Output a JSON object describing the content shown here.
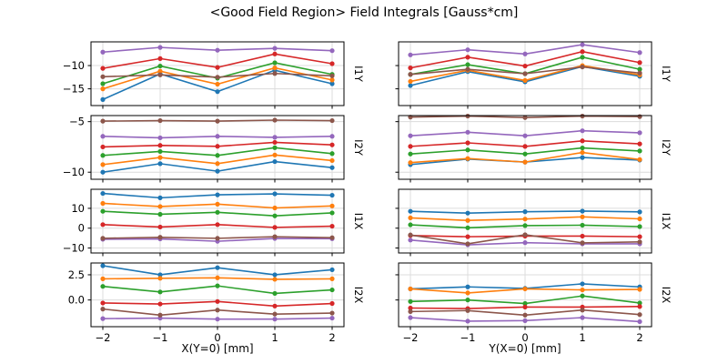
{
  "chart_data": {
    "type": "line",
    "title": "<Good Field Region> Field Integrals [Gauss*cm]",
    "grid": true,
    "legend_position": "none",
    "marker": "circle",
    "x": [
      -2,
      -1,
      0,
      1,
      2
    ],
    "xtick_labels": [
      "−2",
      "−1",
      "0",
      "1",
      "2"
    ],
    "columns": [
      {
        "xlabel": "X(Y=0) [mm]"
      },
      {
        "xlabel": "Y(X=0) [mm]"
      }
    ],
    "series_palette": [
      {
        "name": "blue",
        "color": "#1f77b4"
      },
      {
        "name": "orange",
        "color": "#ff7f0e"
      },
      {
        "name": "green",
        "color": "#2ca02c"
      },
      {
        "name": "red",
        "color": "#d62728"
      },
      {
        "name": "purple",
        "color": "#9467bd"
      },
      {
        "name": "brown",
        "color": "#8c564b"
      }
    ],
    "colors": {
      "grid": "#dcdcdc",
      "spine": "#000000",
      "text": "#000000",
      "background": "#ffffff"
    },
    "rows": [
      {
        "label": "I1Y",
        "ylim": [
          -18.6,
          -4.9
        ],
        "yticks": [
          -10,
          -15
        ],
        "ytick_labels": [
          "−10",
          "−15"
        ],
        "panels": [
          {
            "series": [
              {
                "name": "blue",
                "values": [
                  -17.3,
                  -11.8,
                  -15.6,
                  -11.0,
                  -13.9
                ]
              },
              {
                "name": "orange",
                "values": [
                  -15.0,
                  -11.2,
                  -14.0,
                  -10.5,
                  -13.1
                ]
              },
              {
                "name": "green",
                "values": [
                  -13.9,
                  -10.1,
                  -12.7,
                  -9.4,
                  -11.9
                ]
              },
              {
                "name": "red",
                "values": [
                  -10.6,
                  -8.5,
                  -10.4,
                  -7.5,
                  -9.6
                ]
              },
              {
                "name": "purple",
                "values": [
                  -7.1,
                  -6.1,
                  -6.7,
                  -6.3,
                  -6.8
                ]
              },
              {
                "name": "brown",
                "values": [
                  -12.4,
                  -12.0,
                  -12.5,
                  -11.7,
                  -12.2
                ]
              }
            ]
          },
          {
            "series": [
              {
                "name": "blue",
                "values": [
                  -14.3,
                  -11.3,
                  -13.5,
                  -10.2,
                  -12.3
                ]
              },
              {
                "name": "orange",
                "values": [
                  -13.4,
                  -11.0,
                  -13.2,
                  -10.0,
                  -12.0
                ]
              },
              {
                "name": "green",
                "values": [
                  -11.9,
                  -9.8,
                  -11.75,
                  -8.2,
                  -10.8
                ]
              },
              {
                "name": "red",
                "values": [
                  -10.5,
                  -8.2,
                  -10.1,
                  -7.0,
                  -9.35
                ]
              },
              {
                "name": "purple",
                "values": [
                  -7.7,
                  -6.6,
                  -7.5,
                  -5.5,
                  -7.2
                ]
              },
              {
                "name": "brown",
                "values": [
                  -11.9,
                  -10.8,
                  -11.75,
                  -10.3,
                  -11.6
                ]
              }
            ]
          }
        ]
      },
      {
        "label": "I2Y",
        "ylim": [
          -10.7,
          -4.4
        ],
        "yticks": [
          -5,
          -10
        ],
        "ytick_labels": [
          "−5",
          "−10"
        ],
        "panels": [
          {
            "series": [
              {
                "name": "blue",
                "values": [
                  -10.0,
                  -9.16,
                  -9.9,
                  -8.95,
                  -9.55
                ]
              },
              {
                "name": "orange",
                "values": [
                  -9.25,
                  -8.55,
                  -9.15,
                  -8.3,
                  -8.85
                ]
              },
              {
                "name": "green",
                "values": [
                  -8.34,
                  -7.95,
                  -8.34,
                  -7.58,
                  -8.16
                ]
              },
              {
                "name": "red",
                "values": [
                  -7.5,
                  -7.35,
                  -7.44,
                  -7.05,
                  -7.3
                ]
              },
              {
                "name": "purple",
                "values": [
                  -6.45,
                  -6.6,
                  -6.45,
                  -6.55,
                  -6.45
                ]
              },
              {
                "name": "brown",
                "values": [
                  -4.95,
                  -4.9,
                  -4.95,
                  -4.85,
                  -4.9
                ]
              }
            ]
          },
          {
            "series": [
              {
                "name": "blue",
                "values": [
                  -9.25,
                  -8.7,
                  -9.0,
                  -8.55,
                  -8.8
                ]
              },
              {
                "name": "orange",
                "values": [
                  -9.05,
                  -8.65,
                  -9.0,
                  -8.05,
                  -8.75
                ]
              },
              {
                "name": "green",
                "values": [
                  -8.2,
                  -7.8,
                  -8.2,
                  -7.6,
                  -7.9
                ]
              },
              {
                "name": "red",
                "values": [
                  -7.45,
                  -7.1,
                  -7.45,
                  -6.9,
                  -7.2
                ]
              },
              {
                "name": "purple",
                "values": [
                  -6.4,
                  -6.05,
                  -6.4,
                  -5.9,
                  -6.1
                ]
              },
              {
                "name": "brown",
                "values": [
                  -4.55,
                  -4.45,
                  -4.6,
                  -4.45,
                  -4.5
                ]
              }
            ]
          }
        ]
      },
      {
        "label": "I1X",
        "ylim": [
          -12.5,
          19.6
        ],
        "yticks": [
          10,
          0,
          -10
        ],
        "ytick_labels": [
          "10",
          "0",
          "−10"
        ],
        "panels": [
          {
            "series": [
              {
                "name": "blue",
                "values": [
                  17.5,
                  15.3,
                  16.8,
                  17.3,
                  16.6
                ]
              },
              {
                "name": "orange",
                "values": [
                  12.5,
                  10.9,
                  12.1,
                  10.2,
                  11.2
                ]
              },
              {
                "name": "green",
                "values": [
                  8.5,
                  7.0,
                  8.0,
                  6.2,
                  7.7
                ]
              },
              {
                "name": "red",
                "values": [
                  1.8,
                  0.6,
                  1.8,
                  0.4,
                  1.0
                ]
              },
              {
                "name": "purple",
                "values": [
                  -5.6,
                  -5.4,
                  -6.6,
                  -5.2,
                  -5.3
                ]
              },
              {
                "name": "brown",
                "values": [
                  -5.1,
                  -4.6,
                  -5.1,
                  -4.3,
                  -4.8
                ]
              }
            ]
          },
          {
            "series": [
              {
                "name": "blue",
                "values": [
                  8.5,
                  7.6,
                  8.3,
                  8.6,
                  8.2
                ]
              },
              {
                "name": "orange",
                "values": [
                  5.2,
                  3.9,
                  4.6,
                  5.7,
                  4.7
                ]
              },
              {
                "name": "green",
                "values": [
                  1.7,
                  0.2,
                  1.3,
                  1.5,
                  0.8
                ]
              },
              {
                "name": "red",
                "values": [
                  -3.7,
                  -4.3,
                  -4.0,
                  -4.0,
                  -4.3
                ]
              },
              {
                "name": "purple",
                "values": [
                  -6.0,
                  -8.4,
                  -7.3,
                  -7.9,
                  -7.9
                ]
              },
              {
                "name": "brown",
                "values": [
                  -3.4,
                  -7.9,
                  -3.3,
                  -7.4,
                  -6.9
                ]
              }
            ]
          }
        ]
      },
      {
        "label": "I2X",
        "ylim": [
          -2.65,
          3.67
        ],
        "yticks": [
          2.5,
          0.0
        ],
        "ytick_labels": [
          "2.5",
          "0.0"
        ],
        "panels": [
          {
            "series": [
              {
                "name": "blue",
                "values": [
                  3.4,
                  2.5,
                  3.2,
                  2.5,
                  3.0
                ]
              },
              {
                "name": "orange",
                "values": [
                  2.1,
                  2.15,
                  2.2,
                  2.05,
                  2.1
                ]
              },
              {
                "name": "green",
                "values": [
                  1.35,
                  0.8,
                  1.4,
                  0.65,
                  1.0
                ]
              },
              {
                "name": "red",
                "values": [
                  -0.3,
                  -0.4,
                  -0.15,
                  -0.6,
                  -0.35
                ]
              },
              {
                "name": "purple",
                "values": [
                  -1.85,
                  -1.8,
                  -1.9,
                  -1.9,
                  -1.8
                ]
              },
              {
                "name": "brown",
                "values": [
                  -0.9,
                  -1.5,
                  -1.0,
                  -1.4,
                  -1.3
                ]
              }
            ]
          },
          {
            "series": [
              {
                "name": "blue",
                "values": [
                  1.1,
                  1.3,
                  1.15,
                  1.6,
                  1.3
                ]
              },
              {
                "name": "orange",
                "values": [
                  1.1,
                  0.7,
                  1.1,
                  1.0,
                  1.05
                ]
              },
              {
                "name": "green",
                "values": [
                  -0.15,
                  0.0,
                  -0.35,
                  0.4,
                  -0.3
                ]
              },
              {
                "name": "red",
                "values": [
                  -0.8,
                  -0.85,
                  -0.7,
                  -0.7,
                  -0.65
                ]
              },
              {
                "name": "purple",
                "values": [
                  -1.75,
                  -2.1,
                  -2.05,
                  -1.75,
                  -2.15
                ]
              },
              {
                "name": "brown",
                "values": [
                  -1.15,
                  -1.05,
                  -1.5,
                  -1.0,
                  -1.45
                ]
              }
            ]
          }
        ]
      }
    ]
  }
}
